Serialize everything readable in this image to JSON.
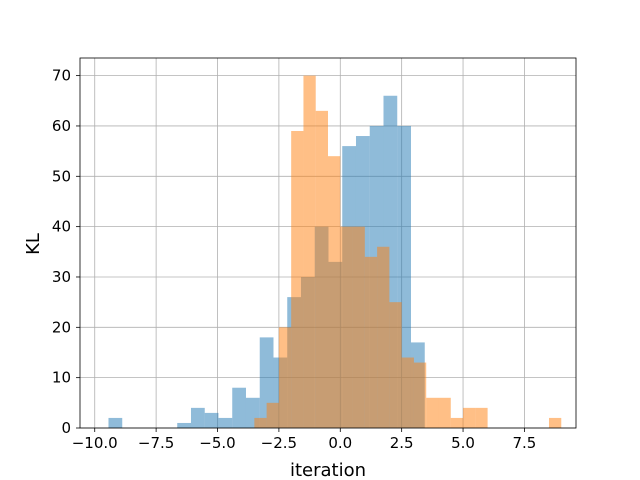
{
  "chart_data": {
    "type": "histogram",
    "title": "",
    "xlabel": "iteration",
    "ylabel": "KL",
    "xlim": [
      -10.6,
      9.6
    ],
    "ylim": [
      0,
      73.5
    ],
    "grid": true,
    "legend": "none",
    "x_ticks": [
      -10.0,
      -7.5,
      -5.0,
      -2.5,
      0.0,
      2.5,
      5.0,
      7.5
    ],
    "x_tick_labels": [
      "−10.0",
      "−7.5",
      "−5.0",
      "−2.5",
      "0.0",
      "2.5",
      "5.0",
      "7.5"
    ],
    "y_ticks": [
      0,
      10,
      20,
      30,
      40,
      50,
      60,
      70
    ],
    "y_tick_labels": [
      "0",
      "10",
      "20",
      "30",
      "40",
      "50",
      "60",
      "70"
    ],
    "series": [
      {
        "color": "#1f77b4",
        "opacity": 0.5,
        "bin_width": 0.56,
        "bins": [
          {
            "x0": -9.44,
            "x1": -8.88,
            "count": 2
          },
          {
            "x0": -8.88,
            "x1": -8.32,
            "count": 0
          },
          {
            "x0": -8.32,
            "x1": -7.76,
            "count": 0
          },
          {
            "x0": -7.76,
            "x1": -7.2,
            "count": 0
          },
          {
            "x0": -7.2,
            "x1": -6.64,
            "count": 0
          },
          {
            "x0": -6.64,
            "x1": -6.08,
            "count": 1
          },
          {
            "x0": -6.08,
            "x1": -5.52,
            "count": 4
          },
          {
            "x0": -5.52,
            "x1": -4.96,
            "count": 3
          },
          {
            "x0": -4.96,
            "x1": -4.4,
            "count": 2
          },
          {
            "x0": -4.4,
            "x1": -3.84,
            "count": 8
          },
          {
            "x0": -3.84,
            "x1": -3.28,
            "count": 6
          },
          {
            "x0": -3.28,
            "x1": -2.72,
            "count": 18
          },
          {
            "x0": -2.72,
            "x1": -2.16,
            "count": 14
          },
          {
            "x0": -2.16,
            "x1": -1.6,
            "count": 26
          },
          {
            "x0": -1.6,
            "x1": -1.04,
            "count": 30
          },
          {
            "x0": -1.04,
            "x1": -0.48,
            "count": 40
          },
          {
            "x0": -0.48,
            "x1": 0.08,
            "count": 33
          },
          {
            "x0": 0.08,
            "x1": 0.64,
            "count": 56
          },
          {
            "x0": 0.64,
            "x1": 1.2,
            "count": 58
          },
          {
            "x0": 1.2,
            "x1": 1.76,
            "count": 60
          },
          {
            "x0": 1.76,
            "x1": 2.32,
            "count": 66
          },
          {
            "x0": 2.32,
            "x1": 2.88,
            "count": 60
          },
          {
            "x0": 2.88,
            "x1": 3.44,
            "count": 17
          }
        ]
      },
      {
        "color": "#ff7f0e",
        "opacity": 0.5,
        "bin_width": 0.5,
        "bins": [
          {
            "x0": -3.5,
            "x1": -3.0,
            "count": 2
          },
          {
            "x0": -3.0,
            "x1": -2.5,
            "count": 5
          },
          {
            "x0": -2.5,
            "x1": -2.0,
            "count": 20
          },
          {
            "x0": -2.0,
            "x1": -1.5,
            "count": 59
          },
          {
            "x0": -1.5,
            "x1": -1.0,
            "count": 70
          },
          {
            "x0": -1.0,
            "x1": -0.5,
            "count": 63
          },
          {
            "x0": -0.5,
            "x1": 0.0,
            "count": 54
          },
          {
            "x0": 0.0,
            "x1": 0.5,
            "count": 40
          },
          {
            "x0": 0.5,
            "x1": 1.0,
            "count": 40
          },
          {
            "x0": 1.0,
            "x1": 1.5,
            "count": 34
          },
          {
            "x0": 1.5,
            "x1": 2.0,
            "count": 36
          },
          {
            "x0": 2.0,
            "x1": 2.5,
            "count": 25
          },
          {
            "x0": 2.5,
            "x1": 3.0,
            "count": 14
          },
          {
            "x0": 3.0,
            "x1": 3.5,
            "count": 13
          },
          {
            "x0": 3.5,
            "x1": 4.0,
            "count": 6
          },
          {
            "x0": 4.0,
            "x1": 4.5,
            "count": 6
          },
          {
            "x0": 4.5,
            "x1": 5.0,
            "count": 2
          },
          {
            "x0": 5.0,
            "x1": 5.5,
            "count": 4
          },
          {
            "x0": 5.5,
            "x1": 6.0,
            "count": 4
          },
          {
            "x0": 6.0,
            "x1": 6.5,
            "count": 0
          },
          {
            "x0": 6.5,
            "x1": 7.0,
            "count": 0
          },
          {
            "x0": 7.0,
            "x1": 7.5,
            "count": 0
          },
          {
            "x0": 7.5,
            "x1": 8.0,
            "count": 0
          },
          {
            "x0": 8.0,
            "x1": 8.5,
            "count": 0
          },
          {
            "x0": 8.5,
            "x1": 9.0,
            "count": 2
          }
        ]
      }
    ]
  }
}
